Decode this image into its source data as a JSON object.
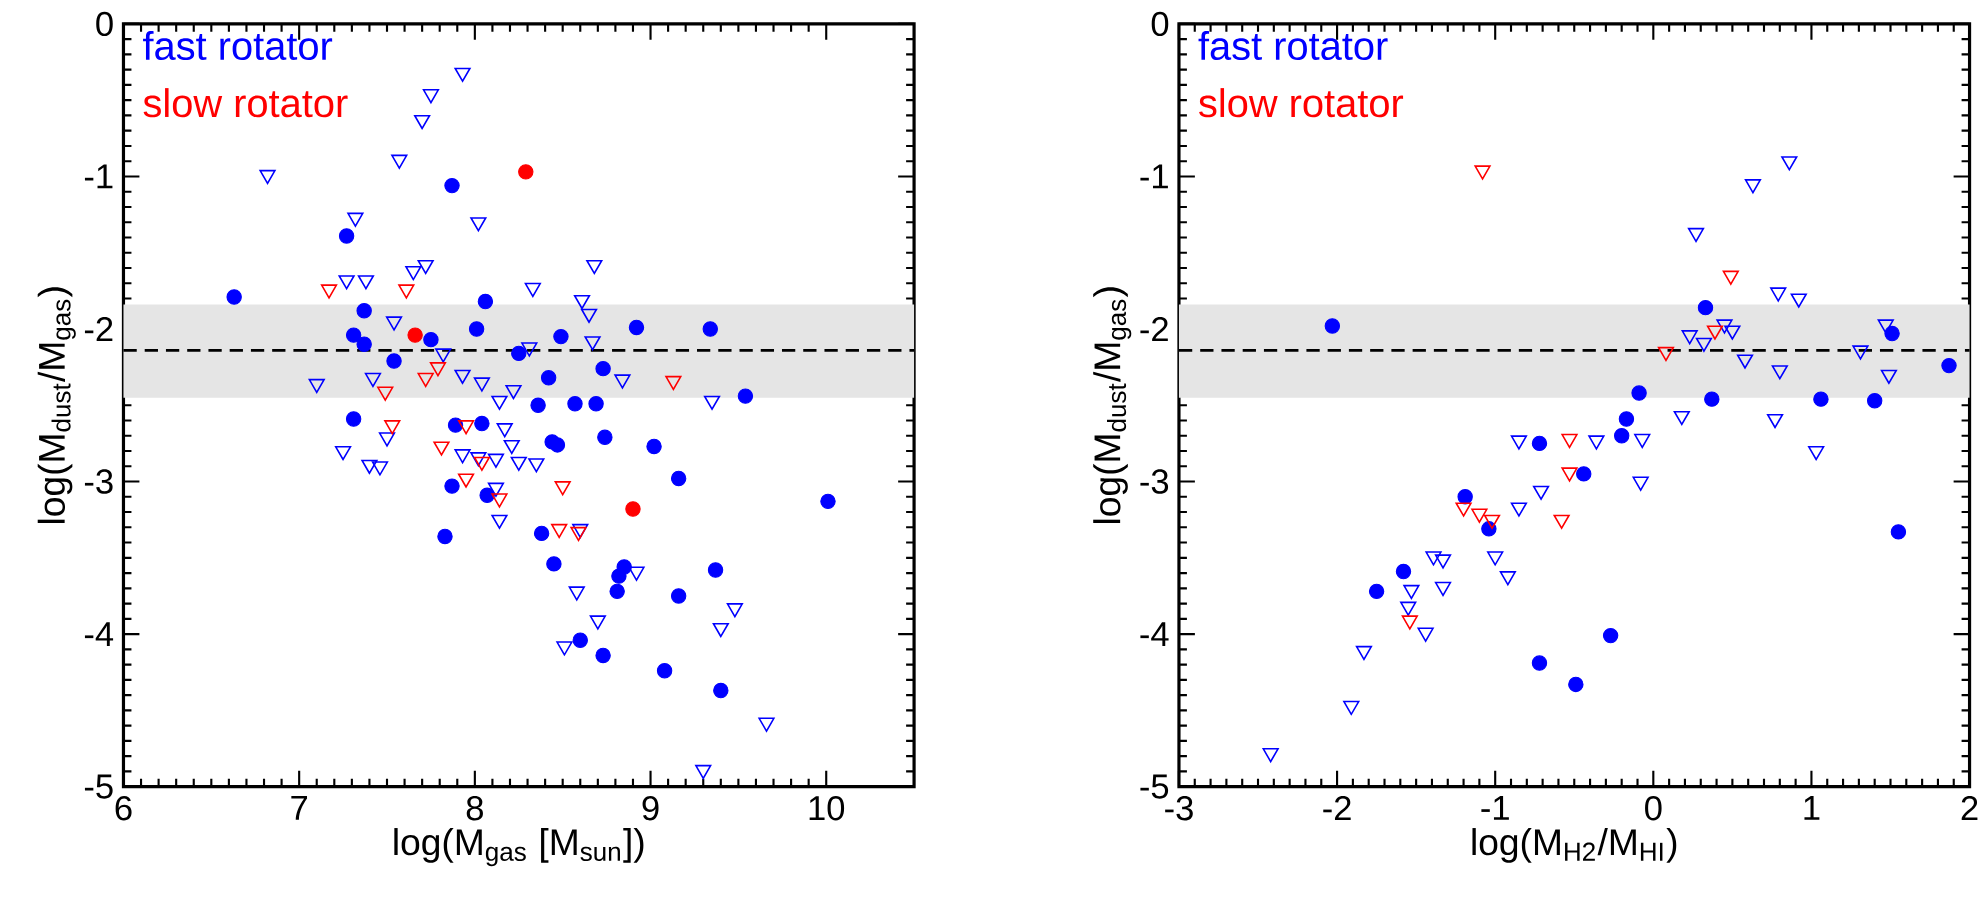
{
  "chart_data": [
    {
      "type": "scatter",
      "xlabel": "log(M$_{gas}$ [M$_{sun}$])",
      "ylabel": "log(M$_{dust}$/M$_{gas}$)",
      "xlim": [
        6,
        10.5
      ],
      "ylim": [
        -5,
        0
      ],
      "xticks": [
        6,
        7,
        8,
        9,
        10
      ],
      "yticks": [
        -5,
        -4,
        -3,
        -2,
        -1,
        0
      ],
      "legend": "top left",
      "bands": [
        {
          "axis": "y",
          "from": -2.45,
          "to": -1.84,
          "color": "#e5e5e5"
        }
      ],
      "ref_lines": [
        {
          "axis": "y",
          "value": -2.14,
          "color": "#000000",
          "line_style": "dashed"
        }
      ],
      "series": [
        {
          "name": "fast rotator",
          "color": "#0000ff",
          "marker": "circle",
          "x": [
            6.63,
            7.87,
            7.27,
            7.37,
            7.31,
            7.37,
            7.54,
            8.06,
            8.01,
            7.75,
            8.25,
            8.42,
            8.36,
            8.44,
            7.31,
            7.89,
            8.04,
            7.87,
            8.07,
            7.83,
            8.38,
            8.45,
            8.49,
            8.92,
            9.34,
            8.73,
            8.57,
            8.69,
            9.54,
            8.47,
            8.74,
            9.02,
            9.16,
            10.01,
            8.85,
            8.82,
            8.81,
            9.37,
            9.16,
            8.6,
            8.73,
            9.08,
            9.4
          ],
          "values": [
            -1.79,
            -1.06,
            -1.39,
            -1.88,
            -2.04,
            -2.1,
            -2.21,
            -1.82,
            -2.0,
            -2.07,
            -2.16,
            -2.32,
            -2.5,
            -2.74,
            -2.59,
            -2.63,
            -2.62,
            -3.03,
            -3.09,
            -3.36,
            -3.34,
            -3.54,
            -2.05,
            -1.99,
            -2.0,
            -2.26,
            -2.49,
            -2.49,
            -2.44,
            -2.76,
            -2.71,
            -2.77,
            -2.98,
            -3.13,
            -3.56,
            -3.62,
            -3.72,
            -3.58,
            -3.75,
            -4.04,
            -4.14,
            -4.24,
            -4.37
          ]
        },
        {
          "color": "#0000ff",
          "marker": "triangle",
          "x": [
            6.82,
            7.93,
            7.75,
            7.7,
            7.57,
            8.02,
            7.32,
            7.27,
            7.38,
            7.65,
            7.72,
            8.33,
            7.54,
            7.1,
            7.42,
            7.82,
            7.93,
            8.04,
            8.14,
            8.22,
            8.31,
            7.5,
            7.25,
            7.4,
            7.46,
            7.93,
            8.02,
            8.12,
            8.17,
            8.21,
            8.25,
            8.35,
            8.12,
            8.14,
            8.68,
            8.61,
            8.65,
            8.67,
            8.84,
            9.35,
            8.6,
            8.92,
            8.58,
            8.7,
            8.51,
            9.4,
            9.48,
            9.66,
            9.3
          ],
          "values": [
            -0.99,
            -0.32,
            -0.46,
            -0.63,
            -0.89,
            -1.3,
            -1.27,
            -1.68,
            -1.68,
            -1.62,
            -1.58,
            -1.73,
            -1.95,
            -2.36,
            -2.32,
            -2.16,
            -2.3,
            -2.35,
            -2.47,
            -2.4,
            -2.12,
            -2.71,
            -2.8,
            -2.89,
            -2.9,
            -2.82,
            -2.84,
            -2.85,
            -2.65,
            -2.76,
            -2.87,
            -2.88,
            -3.04,
            -3.25,
            -1.58,
            -1.81,
            -1.9,
            -2.08,
            -2.33,
            -2.47,
            -3.31,
            -3.59,
            -3.72,
            -3.91,
            -4.08,
            -3.96,
            -3.83,
            -4.58,
            -4.89
          ]
        },
        {
          "name": "slow rotator",
          "color": "#ff0000",
          "marker": "circle",
          "x": [
            8.29,
            7.66,
            8.9
          ],
          "values": [
            -0.97,
            -2.04,
            -3.18
          ]
        },
        {
          "color": "#ff0000",
          "marker": "triangle",
          "x": [
            7.17,
            7.61,
            7.49,
            7.72,
            7.79,
            7.53,
            7.81,
            7.95,
            8.04,
            7.95,
            8.14,
            9.13,
            8.5,
            8.48,
            8.59
          ],
          "values": [
            -1.74,
            -1.74,
            -2.41,
            -2.32,
            -2.25,
            -2.63,
            -2.77,
            -2.63,
            -2.87,
            -2.98,
            -3.11,
            -2.34,
            -3.03,
            -3.31,
            -3.33
          ]
        }
      ]
    },
    {
      "type": "scatter",
      "xlabel": "log(M$_{H2}$/M$_{HI}$)",
      "ylabel": "log(M$_{dust}$/M$_{gas}$)",
      "xlim": [
        -3,
        2
      ],
      "ylim": [
        -5,
        0
      ],
      "xticks": [
        -3,
        -2,
        -1,
        0,
        1,
        2
      ],
      "yticks": [
        -5,
        -4,
        -3,
        -2,
        -1,
        0
      ],
      "legend": "top left",
      "bands": [
        {
          "axis": "y",
          "from": -2.45,
          "to": -1.84,
          "color": "#e5e5e5"
        }
      ],
      "ref_lines": [
        {
          "axis": "y",
          "value": -2.14,
          "color": "#000000",
          "line_style": "dashed"
        }
      ],
      "series": [
        {
          "name": "fast rotator",
          "color": "#0000ff",
          "marker": "circle",
          "x": [
            -2.03,
            -1.75,
            -1.58,
            -1.19,
            -1.04,
            -0.72,
            -0.72,
            -0.49,
            -0.27,
            -0.44,
            -0.2,
            -0.17,
            -0.09,
            0.33,
            0.37,
            1.06,
            1.4,
            1.51,
            1.87,
            1.55
          ],
          "values": [
            -1.98,
            -3.72,
            -3.59,
            -3.1,
            -3.31,
            -2.75,
            -4.19,
            -4.33,
            -4.01,
            -2.95,
            -2.7,
            -2.59,
            -2.42,
            -1.86,
            -2.46,
            -2.46,
            -2.47,
            -2.03,
            -2.24,
            -3.33
          ]
        },
        {
          "color": "#0000ff",
          "marker": "triangle",
          "x": [
            -2.42,
            -1.91,
            -1.83,
            -1.53,
            -1.55,
            -1.44,
            -1.39,
            -1.33,
            -1.33,
            -1.0,
            -0.92,
            -0.85,
            -0.85,
            -0.71,
            -0.36,
            -0.07,
            -0.08,
            0.18,
            0.27,
            0.23,
            0.32,
            0.45,
            0.5,
            0.58,
            0.63,
            0.86,
            0.79,
            0.92,
            0.8,
            0.77,
            1.03,
            1.31,
            1.47,
            1.49
          ],
          "values": [
            -4.78,
            -4.47,
            -4.11,
            -3.71,
            -3.82,
            -3.99,
            -3.49,
            -3.51,
            -3.69,
            -3.49,
            -3.62,
            -3.17,
            -2.73,
            -3.06,
            -2.73,
            -2.72,
            -3.0,
            -2.57,
            -1.37,
            -2.04,
            -2.09,
            -1.97,
            -2.01,
            -2.2,
            -1.05,
            -0.9,
            -1.76,
            -1.8,
            -2.27,
            -2.59,
            -2.8,
            -2.14,
            -1.97,
            -2.3
          ]
        },
        {
          "name": "slow rotator",
          "color": "#ff0000",
          "marker": "triangle",
          "x": [
            -1.08,
            -1.2,
            -1.1,
            -1.02,
            -1.54,
            -0.58,
            -0.53,
            -0.53,
            0.08,
            0.39,
            0.49
          ],
          "values": [
            -0.96,
            -3.17,
            -3.21,
            -3.25,
            -3.91,
            -3.25,
            -2.72,
            -2.94,
            -2.15,
            -2.01,
            -1.65
          ]
        }
      ]
    }
  ]
}
